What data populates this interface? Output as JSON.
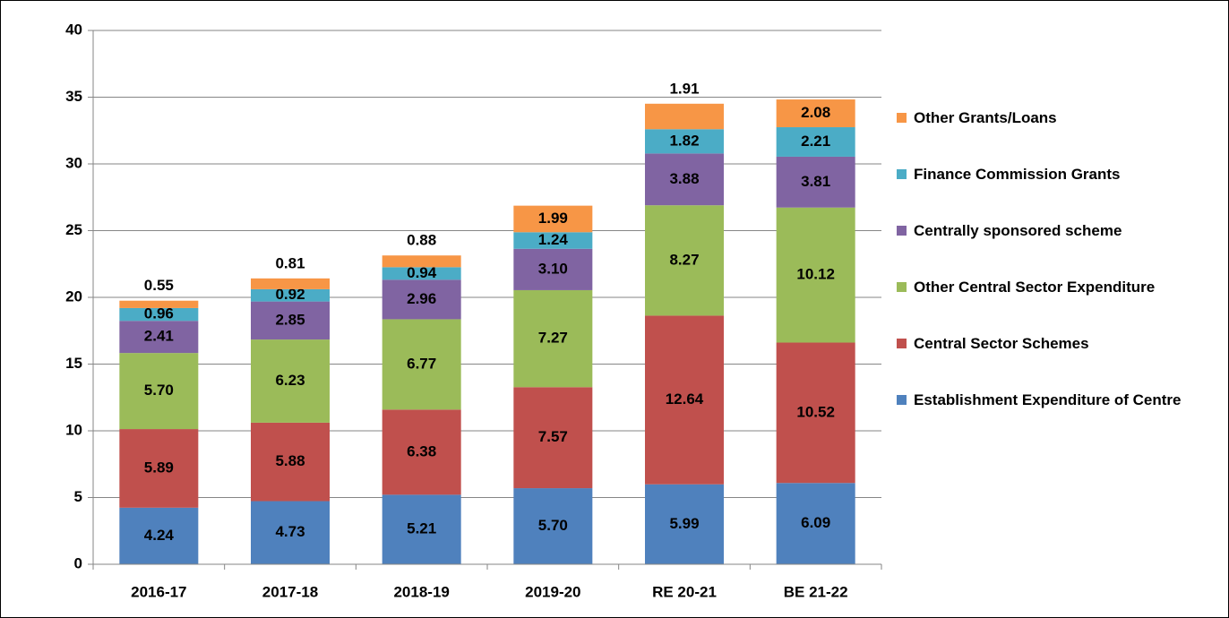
{
  "chart_data": {
    "type": "stacked-bar",
    "categories": [
      "2016-17",
      "2017-18",
      "2018-19",
      "2019-20",
      "RE 20-21",
      "BE 21-22"
    ],
    "series": [
      {
        "name": "Establishment Expenditure of Centre",
        "color": "#4f81bd",
        "values": [
          4.24,
          4.73,
          5.21,
          5.7,
          5.99,
          6.09
        ],
        "value_labels": [
          "4.24",
          "4.73",
          "5.21",
          "5.70",
          "5.99",
          "6.09"
        ]
      },
      {
        "name": "Central Sector Schemes",
        "color": "#c0504d",
        "values": [
          5.89,
          5.88,
          6.38,
          7.57,
          12.64,
          10.52
        ],
        "value_labels": [
          "5.89",
          "5.88",
          "6.38",
          "7.57",
          "12.64",
          "10.52"
        ]
      },
      {
        "name": "Other Central Sector Expenditure",
        "color": "#9bbb59",
        "values": [
          5.7,
          6.23,
          6.77,
          7.27,
          8.27,
          10.12
        ],
        "value_labels": [
          "5.70",
          "6.23",
          "6.77",
          "7.27",
          "8.27",
          "10.12"
        ]
      },
      {
        "name": "Centrally sponsored scheme",
        "color": "#8064a2",
        "values": [
          2.41,
          2.85,
          2.96,
          3.1,
          3.88,
          3.81
        ],
        "value_labels": [
          "2.41",
          "2.85",
          "2.96",
          "3.10",
          "3.88",
          "3.81"
        ]
      },
      {
        "name": "Finance Commission Grants",
        "color": "#4bacc6",
        "values": [
          0.96,
          0.92,
          0.94,
          1.24,
          1.82,
          2.21
        ],
        "value_labels": [
          "0.96",
          "0.92",
          "0.94",
          "1.24",
          "1.82",
          "2.21"
        ]
      },
      {
        "name": "Other Grants/Loans",
        "color": "#f79646",
        "values": [
          0.55,
          0.81,
          0.88,
          1.99,
          1.91,
          2.08
        ],
        "value_labels": [
          "0.55",
          "0.81",
          "0.88",
          "1.99",
          "1.91",
          "2.08"
        ]
      }
    ],
    "ylim": [
      0,
      40
    ],
    "yticks": [
      0,
      5,
      10,
      15,
      20,
      25,
      30,
      35,
      40
    ],
    "grid": true,
    "legend": "right"
  }
}
